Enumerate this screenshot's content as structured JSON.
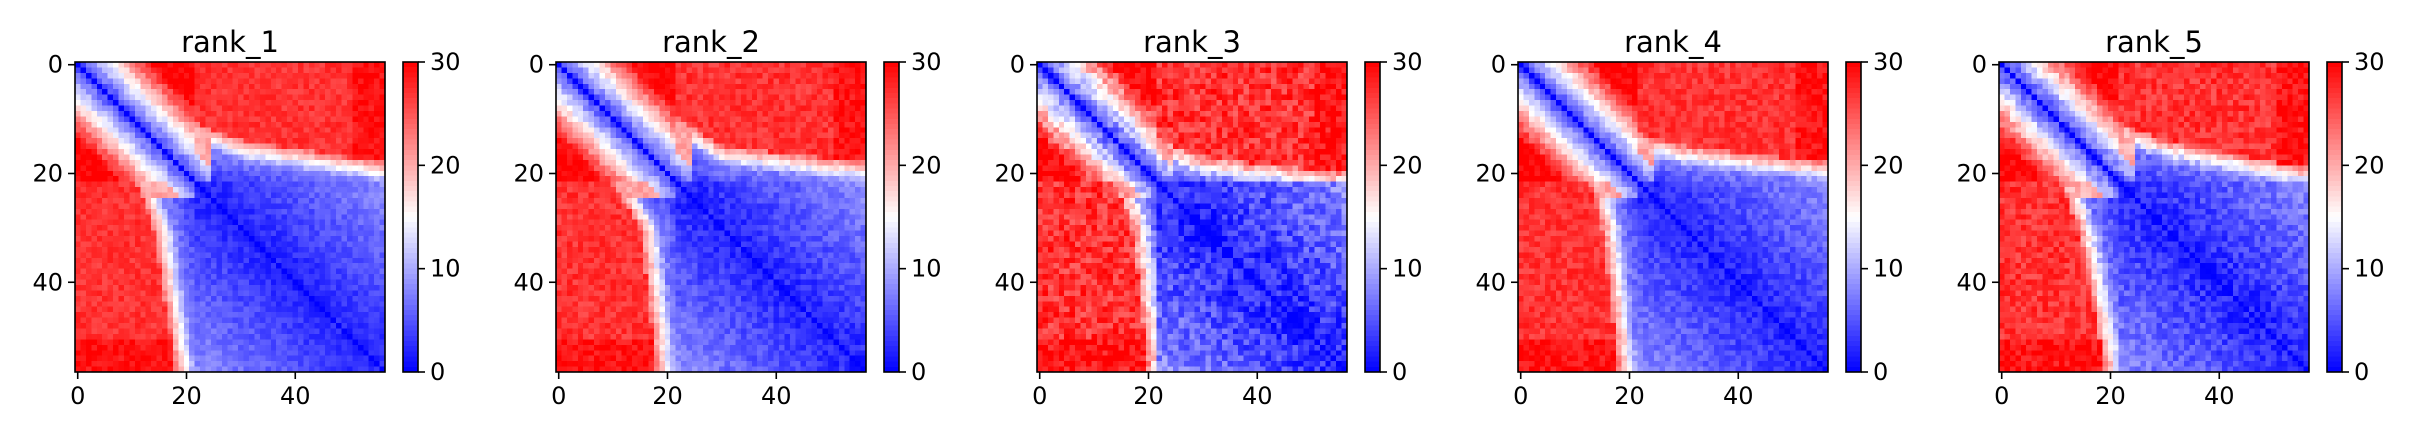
{
  "chart_data": {
    "type": "heatmap",
    "colormap": "bwr",
    "colormap_colors": {
      "low": "#0000ff",
      "mid": "#ffffff",
      "high": "#ff0000"
    },
    "matrix_size": 57,
    "xlim": [
      0,
      56
    ],
    "ylim": [
      56,
      0
    ],
    "color_range": [
      0,
      30
    ],
    "grid": false,
    "axis_ticks": {
      "x": [
        0,
        20,
        40
      ],
      "y": [
        0,
        20,
        40
      ]
    },
    "colorbar_ticks": [
      0,
      10,
      20,
      30
    ],
    "panels": [
      {
        "title": "rank_1",
        "domain_split": 22,
        "left_boundary_top": 13,
        "left_boundary_mid": 16,
        "left_boundary_bottom": 20,
        "noise": 0.1
      },
      {
        "title": "rank_2",
        "domain_split": 22,
        "left_boundary_top": 12,
        "left_boundary_mid": 17,
        "left_boundary_bottom": 20,
        "noise": 0.12
      },
      {
        "title": "rank_3",
        "domain_split": 22,
        "left_boundary_top": 16,
        "left_boundary_mid": 19,
        "left_boundary_bottom": 22,
        "noise": 0.2
      },
      {
        "title": "rank_4",
        "domain_split": 22,
        "left_boundary_top": 15,
        "left_boundary_mid": 17,
        "left_boundary_bottom": 20,
        "noise": 0.12
      },
      {
        "title": "rank_5",
        "domain_split": 22,
        "left_boundary_top": 13,
        "left_boundary_mid": 16,
        "left_boundary_bottom": 21,
        "noise": 0.15
      }
    ]
  }
}
